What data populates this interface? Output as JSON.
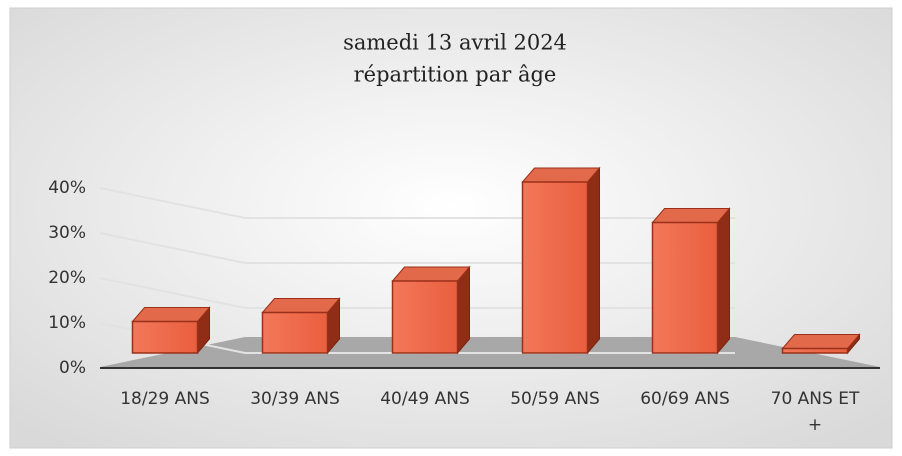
{
  "chart_data": {
    "type": "bar3d",
    "title": "samedi 13 avril 2024",
    "subtitle": "répartition par âge",
    "categories": [
      "18/29 ANS",
      "30/39 ANS",
      "40/49 ANS",
      "50/59 ANS",
      "60/69 ANS",
      "70 ANS ET +"
    ],
    "values": [
      7,
      9,
      16,
      38,
      29,
      1
    ],
    "color": "#f07050",
    "ylim": [
      0,
      40
    ],
    "yticks": [
      {
        "value": 0,
        "label": "0%"
      },
      {
        "value": 10,
        "label": "10%"
      },
      {
        "value": 20,
        "label": "20%"
      },
      {
        "value": 30,
        "label": "30%"
      },
      {
        "value": 40,
        "label": "40%"
      }
    ],
    "grid": true
  }
}
